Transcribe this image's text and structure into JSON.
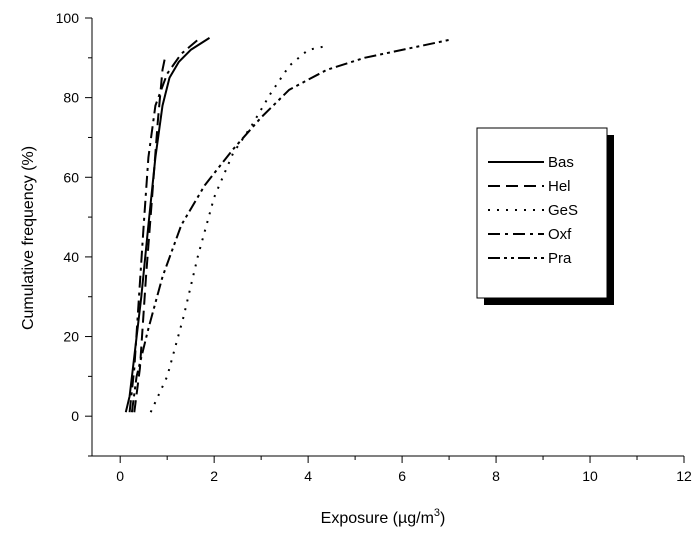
{
  "chart_data": {
    "type": "line",
    "title": "",
    "xlabel": "Exposure (µg/m",
    "xlabel_sup": "3",
    "xlabel_close": ")",
    "ylabel": "Cumulative frequency (%)",
    "xlim": [
      -0.6,
      12
    ],
    "ylim": [
      -10,
      100
    ],
    "xticks": [
      0,
      2,
      4,
      6,
      8,
      10,
      12
    ],
    "yticks": [
      0,
      20,
      40,
      60,
      80,
      100
    ],
    "grid": false,
    "legend_position": "right",
    "series": [
      {
        "name": "Bas",
        "dash": "solid",
        "points": [
          [
            0.12,
            1
          ],
          [
            0.2,
            5
          ],
          [
            0.3,
            15
          ],
          [
            0.45,
            30
          ],
          [
            0.6,
            48
          ],
          [
            0.75,
            65
          ],
          [
            0.9,
            78
          ],
          [
            1.05,
            85
          ],
          [
            1.25,
            89
          ],
          [
            1.5,
            92
          ],
          [
            1.9,
            95
          ]
        ]
      },
      {
        "name": "Hel",
        "dash": "dash",
        "points": [
          [
            0.3,
            1
          ],
          [
            0.42,
            12
          ],
          [
            0.55,
            35
          ],
          [
            0.68,
            55
          ],
          [
            0.8,
            74
          ],
          [
            0.9,
            87
          ],
          [
            0.97,
            91
          ]
        ]
      },
      {
        "name": "GeS",
        "dash": "dot",
        "points": [
          [
            0.65,
            1
          ],
          [
            1.0,
            10
          ],
          [
            1.35,
            25
          ],
          [
            1.65,
            40
          ],
          [
            2.0,
            55
          ],
          [
            2.4,
            66
          ],
          [
            2.8,
            73
          ],
          [
            3.2,
            81
          ],
          [
            3.6,
            88
          ],
          [
            4.0,
            92
          ],
          [
            4.4,
            93
          ]
        ]
      },
      {
        "name": "Oxf",
        "dash": "dashdot",
        "points": [
          [
            0.2,
            1
          ],
          [
            0.3,
            12
          ],
          [
            0.4,
            30
          ],
          [
            0.5,
            48
          ],
          [
            0.6,
            65
          ],
          [
            0.75,
            78
          ],
          [
            1.0,
            86
          ],
          [
            1.3,
            91
          ],
          [
            1.7,
            95
          ]
        ]
      },
      {
        "name": "Pra",
        "dash": "dashdotdot",
        "points": [
          [
            0.25,
            1
          ],
          [
            0.35,
            10
          ],
          [
            0.6,
            22
          ],
          [
            0.9,
            35
          ],
          [
            1.3,
            48
          ],
          [
            1.8,
            58
          ],
          [
            2.4,
            67
          ],
          [
            3.0,
            75
          ],
          [
            3.6,
            82
          ],
          [
            4.4,
            87
          ],
          [
            5.2,
            90
          ],
          [
            6.0,
            92
          ],
          [
            7.0,
            94.5
          ]
        ]
      }
    ]
  }
}
